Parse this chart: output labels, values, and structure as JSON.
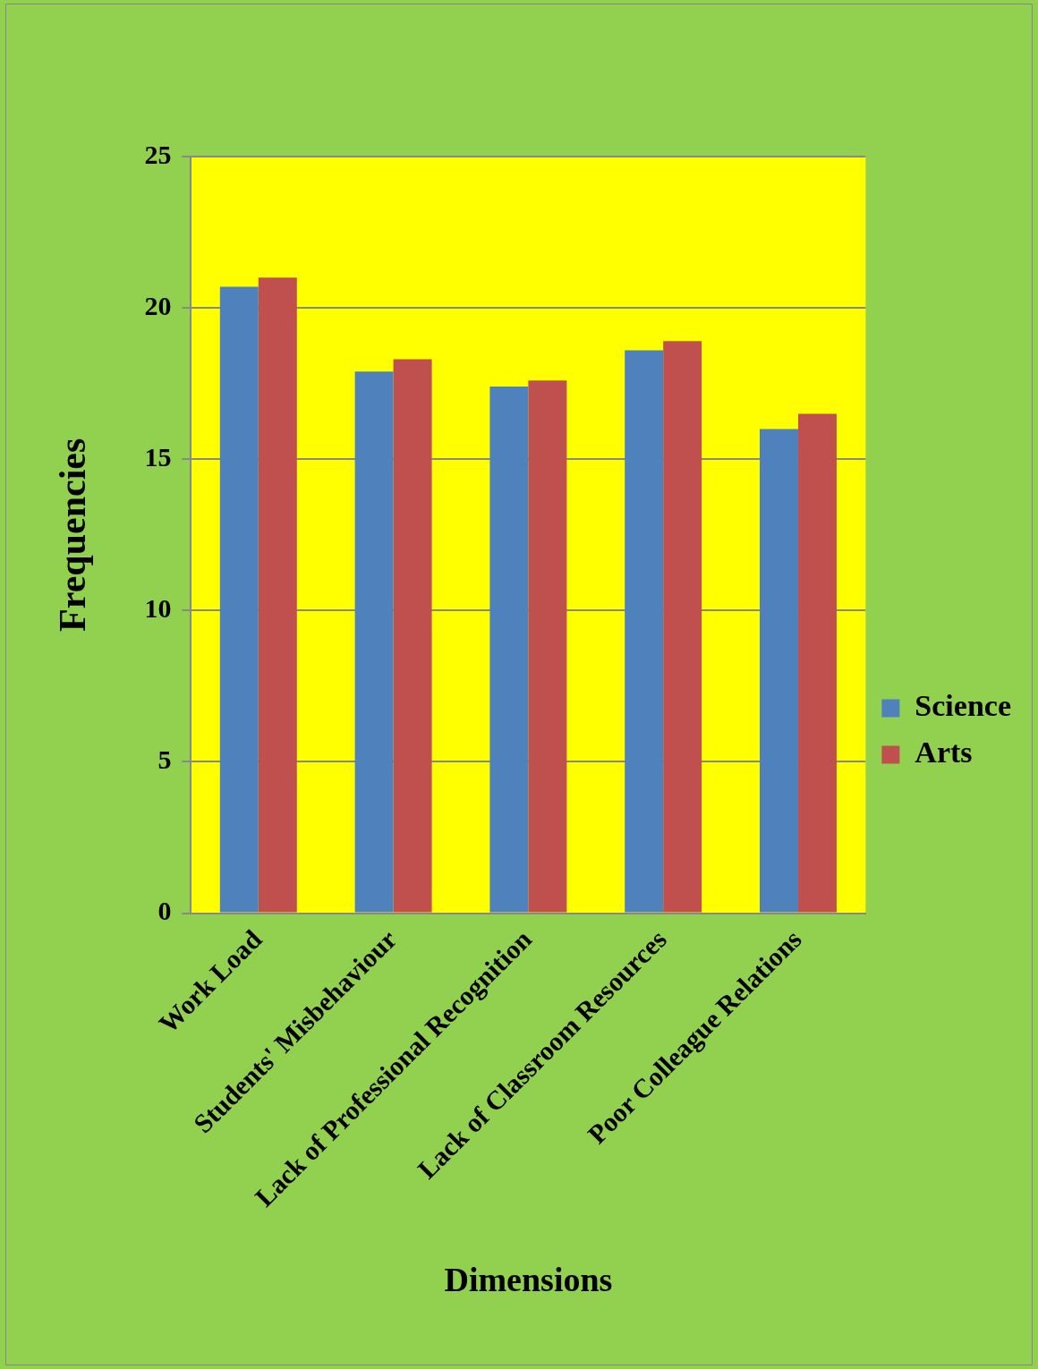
{
  "chart_data": {
    "type": "bar",
    "xlabel": "Dimensions",
    "ylabel": "Frequencies",
    "categories": [
      "Work Load",
      "Students' Misbehaviour",
      "Lack of Professional Recognition",
      "Lack of Classroom Resources",
      "Poor Colleague Relations"
    ],
    "series": [
      {
        "name": "Science",
        "color": "#4f81bd",
        "values": [
          20.7,
          17.9,
          17.4,
          18.6,
          16.0
        ]
      },
      {
        "name": "Arts",
        "color": "#c0504d",
        "values": [
          21.0,
          18.3,
          17.6,
          18.9,
          16.5
        ]
      }
    ],
    "ylim": [
      0,
      25
    ],
    "yticks": [
      0,
      5,
      10,
      15,
      20,
      25
    ],
    "grid": "y",
    "legend": "right"
  }
}
